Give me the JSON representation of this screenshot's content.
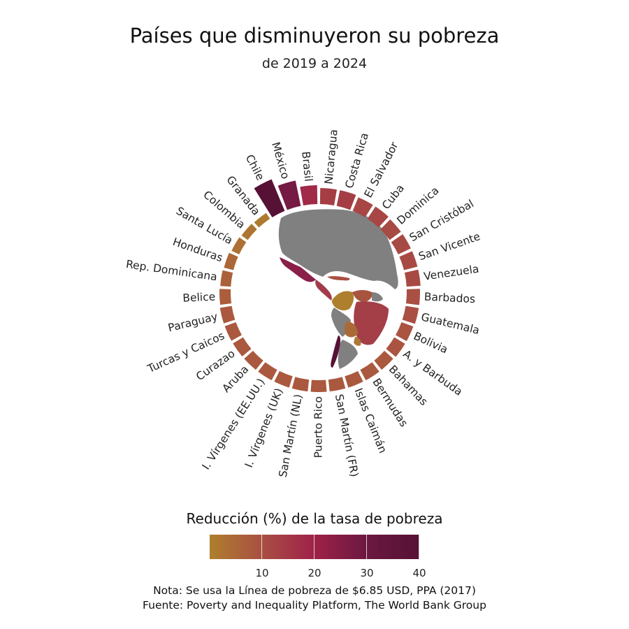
{
  "title": "Países que disminuyeron su pobreza",
  "subtitle": "de 2019 a 2024",
  "legend": {
    "title": "Reducción (%) de la tasa de pobreza",
    "ticks": [
      "10",
      "20",
      "30",
      "40"
    ],
    "tick_values": [
      10,
      20,
      30,
      40
    ],
    "range": [
      0,
      40
    ]
  },
  "notes": {
    "line1": "Nota: Se usa la Línea de pobreza de $6.85 USD, PPA (2017)",
    "line2": "Fuente: Poverty and Inequality Platform, The World Bank Group"
  },
  "colors": {
    "low": "#ae7f2c",
    "mid": "#9e2148",
    "high": "#571135",
    "map_land": "#808080"
  },
  "chart_data": {
    "type": "bar",
    "layout": "circular",
    "value_label": "Reducción (%) de la tasa de pobreza",
    "categories": [
      "Chile",
      "México",
      "Brasil",
      "Nicaragua",
      "Costa Rica",
      "El Salvador",
      "Cuba",
      "Dominica",
      "San Cristóbal",
      "San Vicente",
      "Venezuela",
      "Barbados",
      "Guatemala",
      "Bolivia",
      "A. y Barbuda",
      "Bahamas",
      "Bermudas",
      "Islas Caimán",
      "San Martín (FR)",
      "Puerto Rico",
      "San Martín (NL)",
      "I. Vírgenes (UK)",
      "I. Vírgenes (EE.UU.)",
      "Aruba",
      "Curazao",
      "Turcas y Caicos",
      "Paraguay",
      "Belice",
      "Rep. Dominicana",
      "Honduras",
      "Santa Lucía",
      "Colombia",
      "Granada"
    ],
    "values": [
      40,
      28,
      18,
      14,
      14,
      12,
      12,
      11,
      11,
      11,
      11,
      10,
      10,
      9,
      9,
      8,
      8,
      8,
      8,
      8,
      8,
      8,
      8,
      8,
      8,
      8,
      8,
      7,
      6,
      5,
      3,
      2,
      1
    ]
  }
}
